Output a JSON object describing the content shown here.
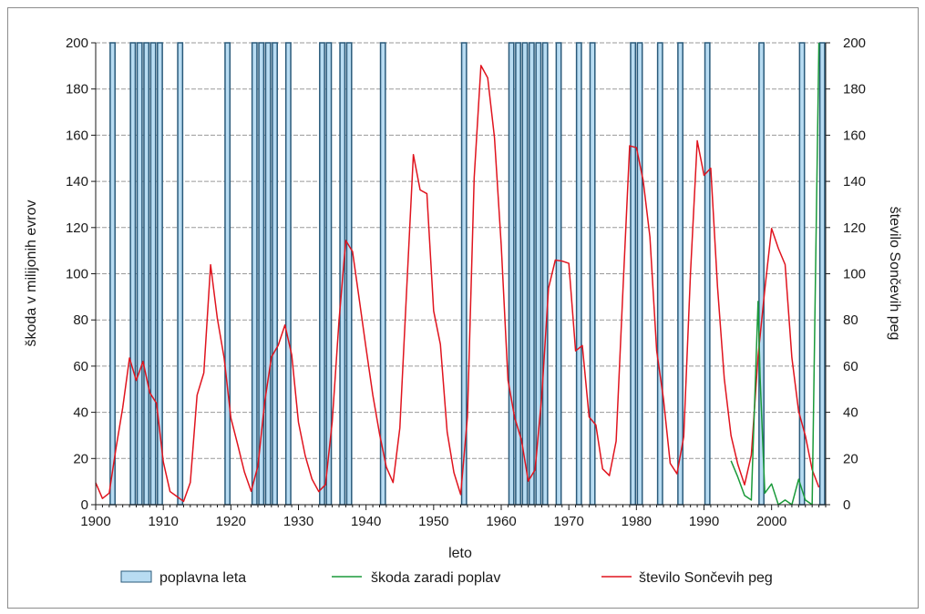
{
  "chart_data": {
    "type": "bar+line",
    "title": "",
    "xlabel": "leto",
    "ylabel_left": "škoda v milijonih evrov",
    "ylabel_right": "število Sončevih peg",
    "xlim": [
      1900,
      2008
    ],
    "ylim": [
      0,
      200
    ],
    "x_ticks": [
      "1900",
      "1910",
      "1920",
      "1930",
      "1940",
      "1950",
      "1960",
      "1970",
      "1980",
      "1990",
      "2000"
    ],
    "y_ticks": [
      "0",
      "20",
      "40",
      "60",
      "80",
      "100",
      "120",
      "140",
      "160",
      "180",
      "200"
    ],
    "grid": true,
    "legend_position": "bottom",
    "legend": {
      "flood_years_label": "poplavna leta",
      "damage_label": "škoda zaradi poplav",
      "sunspots_label": "število Sončevih peg"
    },
    "colors": {
      "flood_fill": "#b8dcf2",
      "flood_stroke": "#2a5a7a",
      "damage_line": "#1a9a3a",
      "sunspot_line": "#e0141e",
      "grid": "#9a9a9a",
      "axis": "#1a1a1a"
    },
    "flood_years": [
      1902,
      1905,
      1906,
      1907,
      1908,
      1909,
      1912,
      1919,
      1923,
      1924,
      1925,
      1926,
      1928,
      1933,
      1934,
      1936,
      1937,
      1942,
      1954,
      1961,
      1962,
      1963,
      1964,
      1965,
      1966,
      1968,
      1971,
      1973,
      1979,
      1980,
      1983,
      1986,
      1990,
      1998,
      2004,
      2007
    ],
    "sunspots": {
      "x": [
        1900,
        1901,
        1902,
        1903,
        1904,
        1905,
        1906,
        1907,
        1908,
        1909,
        1910,
        1911,
        1912,
        1913,
        1914,
        1915,
        1916,
        1917,
        1918,
        1919,
        1920,
        1921,
        1922,
        1923,
        1924,
        1925,
        1926,
        1927,
        1928,
        1929,
        1930,
        1931,
        1932,
        1933,
        1934,
        1935,
        1936,
        1937,
        1938,
        1939,
        1940,
        1941,
        1942,
        1943,
        1944,
        1945,
        1946,
        1947,
        1948,
        1949,
        1950,
        1951,
        1952,
        1953,
        1954,
        1955,
        1956,
        1957,
        1958,
        1959,
        1960,
        1961,
        1962,
        1963,
        1964,
        1965,
        1966,
        1967,
        1968,
        1969,
        1970,
        1971,
        1972,
        1973,
        1974,
        1975,
        1976,
        1977,
        1978,
        1979,
        1980,
        1981,
        1982,
        1983,
        1984,
        1985,
        1986,
        1987,
        1988,
        1989,
        1990,
        1991,
        1992,
        1993,
        1994,
        1995,
        1996,
        1997,
        1998,
        1999,
        2000,
        2001,
        2002,
        2003,
        2004,
        2005,
        2006,
        2007
      ],
      "y": [
        9.5,
        2.7,
        5.0,
        24.4,
        42.0,
        63.5,
        53.8,
        62.0,
        48.5,
        43.9,
        18.6,
        5.7,
        3.6,
        1.4,
        9.6,
        47.4,
        57.1,
        103.9,
        80.6,
        63.6,
        37.6,
        26.1,
        14.2,
        5.8,
        16.7,
        44.3,
        63.9,
        69.0,
        77.8,
        64.9,
        35.7,
        21.2,
        11.1,
        5.7,
        8.7,
        36.1,
        79.7,
        114.4,
        109.6,
        88.8,
        67.8,
        47.5,
        30.6,
        16.3,
        9.6,
        33.2,
        92.6,
        151.6,
        136.3,
        134.7,
        83.9,
        69.4,
        31.5,
        13.9,
        4.4,
        38.0,
        141.7,
        190.2,
        184.8,
        159.0,
        112.3,
        53.9,
        37.6,
        27.9,
        10.2,
        15.1,
        47.0,
        93.8,
        105.9,
        105.5,
        104.5,
        66.6,
        68.9,
        38.0,
        34.5,
        15.5,
        12.6,
        27.5,
        92.5,
        155.4,
        154.6,
        140.4,
        115.9,
        66.6,
        45.9,
        17.9,
        13.4,
        29.4,
        100.2,
        157.6,
        142.6,
        145.7,
        94.3,
        54.6,
        29.9,
        17.5,
        8.6,
        21.5,
        64.3,
        93.3,
        119.6,
        111.0,
        104.0,
        63.7,
        40.4,
        29.8,
        15.2,
        7.5
      ]
    },
    "damage": {
      "x": [
        1994,
        1995,
        1996,
        1997,
        1998,
        1998.3,
        1999,
        2000,
        2001,
        2002,
        2003,
        2004,
        2005,
        2006,
        2007
      ],
      "y": [
        19,
        12,
        4,
        2,
        88,
        55,
        5,
        9,
        0,
        2,
        0,
        11,
        2,
        0,
        200
      ]
    }
  }
}
